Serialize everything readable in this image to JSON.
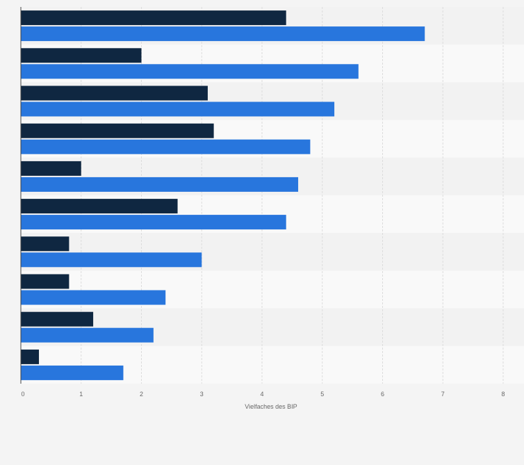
{
  "chart_data": {
    "type": "bar",
    "orientation": "horizontal",
    "categories": [
      "",
      "",
      "",
      "",
      "",
      "",
      "",
      "",
      "",
      ""
    ],
    "series": [
      {
        "values": [
          4.4,
          2.0,
          3.1,
          3.2,
          1.0,
          2.6,
          0.8,
          0.8,
          1.2,
          0.3
        ],
        "color": "#0f2741"
      },
      {
        "values": [
          6.7,
          5.6,
          5.2,
          4.8,
          4.6,
          4.4,
          3.0,
          2.4,
          2.2,
          1.7
        ],
        "color": "#2876dd"
      }
    ],
    "title": "",
    "xlabel": "Vielfaches des BIP",
    "ylabel": "",
    "xlim": [
      0,
      8
    ],
    "xticks": [
      "0",
      "1",
      "2",
      "3",
      "4",
      "5",
      "6",
      "7",
      "8"
    ],
    "grid": true,
    "legend": "none",
    "colors": {
      "background": "#f4f4f4",
      "band_dark": "#f2f2f2",
      "band_light": "#f9f9f9",
      "gridline": "#dcdcdc",
      "axis": "#444444",
      "tick_text": "#666666"
    }
  }
}
